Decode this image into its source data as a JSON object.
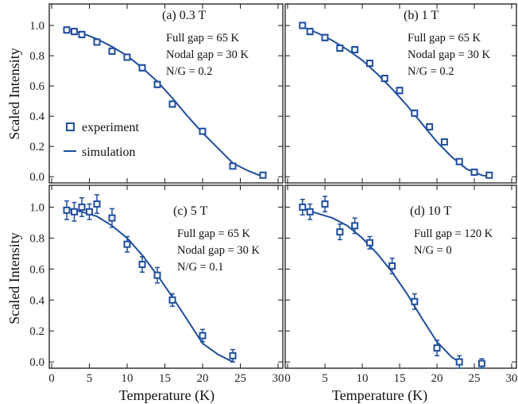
{
  "figure": {
    "ylabel_top": "Scaled Intensity",
    "ylabel_bottom": "Scaled Intensity",
    "xlabel_left": "Temperature (K)",
    "xlabel_right": "Temperature (K)",
    "colors": {
      "data": "#1f4e9e",
      "frame": "#1a1a1a"
    }
  },
  "legend": {
    "experiment_label": "experiment",
    "simulation_label": "simulation",
    "placement": "panel a, middle-left"
  },
  "chart_data": [
    {
      "type": "scatter",
      "panel_label": "(a)  0.3 T",
      "annotations": [
        "Full gap = 65 K",
        "Nodal gap = 30 K",
        "N/G = 0.2"
      ],
      "xlim": [
        0,
        30
      ],
      "ylim": [
        -0.02,
        1.1
      ],
      "yticks": [
        "0.0",
        "0.2",
        "0.4",
        "0.6",
        "0.8",
        "1.0"
      ],
      "xticks": [],
      "experiment": {
        "x": [
          2,
          3,
          4,
          6,
          8,
          10,
          12,
          14,
          16,
          20,
          24,
          28
        ],
        "y": [
          0.97,
          0.96,
          0.94,
          0.89,
          0.83,
          0.79,
          0.72,
          0.61,
          0.48,
          0.3,
          0.07,
          0.01
        ],
        "err": [
          0.02,
          0.02,
          0.02,
          0.02,
          0.02,
          0.02,
          0.02,
          0.02,
          0.02,
          0.015,
          0.015,
          0.01
        ]
      },
      "simulation": {
        "x": [
          2,
          4,
          6,
          8,
          10,
          12,
          14,
          16,
          18,
          20,
          22,
          24,
          26,
          28
        ],
        "y": [
          0.97,
          0.95,
          0.91,
          0.86,
          0.8,
          0.72,
          0.63,
          0.52,
          0.4,
          0.29,
          0.19,
          0.09,
          0.04,
          0.0
        ]
      }
    },
    {
      "type": "scatter",
      "panel_label": "(b)  1 T",
      "annotations": [
        "Full gap = 65 K",
        "Nodal gap = 30 K",
        "N/G = 0.2"
      ],
      "xlim": [
        0,
        30
      ],
      "ylim": [
        -0.02,
        1.1
      ],
      "yticks": [],
      "xticks": [],
      "experiment": {
        "x": [
          2,
          3,
          5,
          7,
          9,
          11,
          13,
          15,
          17,
          19,
          21,
          23,
          25,
          27
        ],
        "y": [
          1.0,
          0.96,
          0.92,
          0.85,
          0.84,
          0.75,
          0.65,
          0.57,
          0.42,
          0.33,
          0.23,
          0.1,
          0.03,
          0.01
        ],
        "err": [
          0.02,
          0.02,
          0.02,
          0.02,
          0.02,
          0.02,
          0.02,
          0.02,
          0.02,
          0.015,
          0.015,
          0.015,
          0.01,
          0.01
        ]
      },
      "simulation": {
        "x": [
          2,
          4,
          6,
          8,
          10,
          12,
          14,
          16,
          18,
          20,
          22,
          24,
          26,
          27
        ],
        "y": [
          0.99,
          0.95,
          0.9,
          0.84,
          0.77,
          0.68,
          0.58,
          0.47,
          0.35,
          0.23,
          0.13,
          0.05,
          0.01,
          0.0
        ]
      }
    },
    {
      "type": "scatter",
      "panel_label": "(c)  5 T",
      "annotations": [
        "Full gap = 65 K",
        "Nodal gap = 30 K",
        "N/G = 0.1"
      ],
      "xlim": [
        0,
        30
      ],
      "ylim": [
        -0.02,
        1.1
      ],
      "yticks": [
        "0.0",
        "0.2",
        "0.4",
        "0.6",
        "0.8",
        "1.0"
      ],
      "xticks": [
        "0",
        "5",
        "10",
        "15",
        "20",
        "25",
        "30"
      ],
      "experiment": {
        "x": [
          2,
          3,
          4,
          5,
          6,
          8,
          10,
          12,
          14,
          16,
          20,
          24
        ],
        "y": [
          0.98,
          0.97,
          1.0,
          0.97,
          1.02,
          0.93,
          0.76,
          0.63,
          0.56,
          0.4,
          0.17,
          0.04
        ],
        "err": [
          0.06,
          0.06,
          0.06,
          0.05,
          0.06,
          0.06,
          0.05,
          0.05,
          0.05,
          0.04,
          0.04,
          0.04
        ]
      },
      "simulation": {
        "x": [
          2,
          4,
          6,
          8,
          10,
          12,
          14,
          16,
          18,
          20,
          22,
          24
        ],
        "y": [
          0.99,
          0.97,
          0.94,
          0.88,
          0.8,
          0.69,
          0.56,
          0.42,
          0.27,
          0.12,
          0.05,
          0.0
        ]
      }
    },
    {
      "type": "scatter",
      "panel_label": "(d)  10 T",
      "annotations": [
        "Full gap = 120 K",
        "N/G = 0"
      ],
      "xlim": [
        0,
        30
      ],
      "ylim": [
        -0.02,
        1.1
      ],
      "yticks": [],
      "xticks": [
        "0",
        "5",
        "10",
        "15",
        "20",
        "25",
        "30"
      ],
      "experiment": {
        "x": [
          2,
          3,
          5,
          7,
          9,
          11,
          14,
          17,
          20,
          23,
          26
        ],
        "y": [
          1.0,
          0.97,
          1.02,
          0.84,
          0.88,
          0.77,
          0.62,
          0.39,
          0.09,
          0.0,
          -0.01
        ],
        "err": [
          0.05,
          0.05,
          0.05,
          0.05,
          0.05,
          0.04,
          0.05,
          0.05,
          0.05,
          0.04,
          0.03
        ]
      },
      "simulation": {
        "x": [
          2,
          4,
          6,
          8,
          10,
          12,
          14,
          16,
          18,
          20,
          22,
          23
        ],
        "y": [
          0.99,
          0.96,
          0.93,
          0.88,
          0.8,
          0.7,
          0.58,
          0.44,
          0.28,
          0.13,
          0.03,
          0.0
        ]
      }
    }
  ]
}
